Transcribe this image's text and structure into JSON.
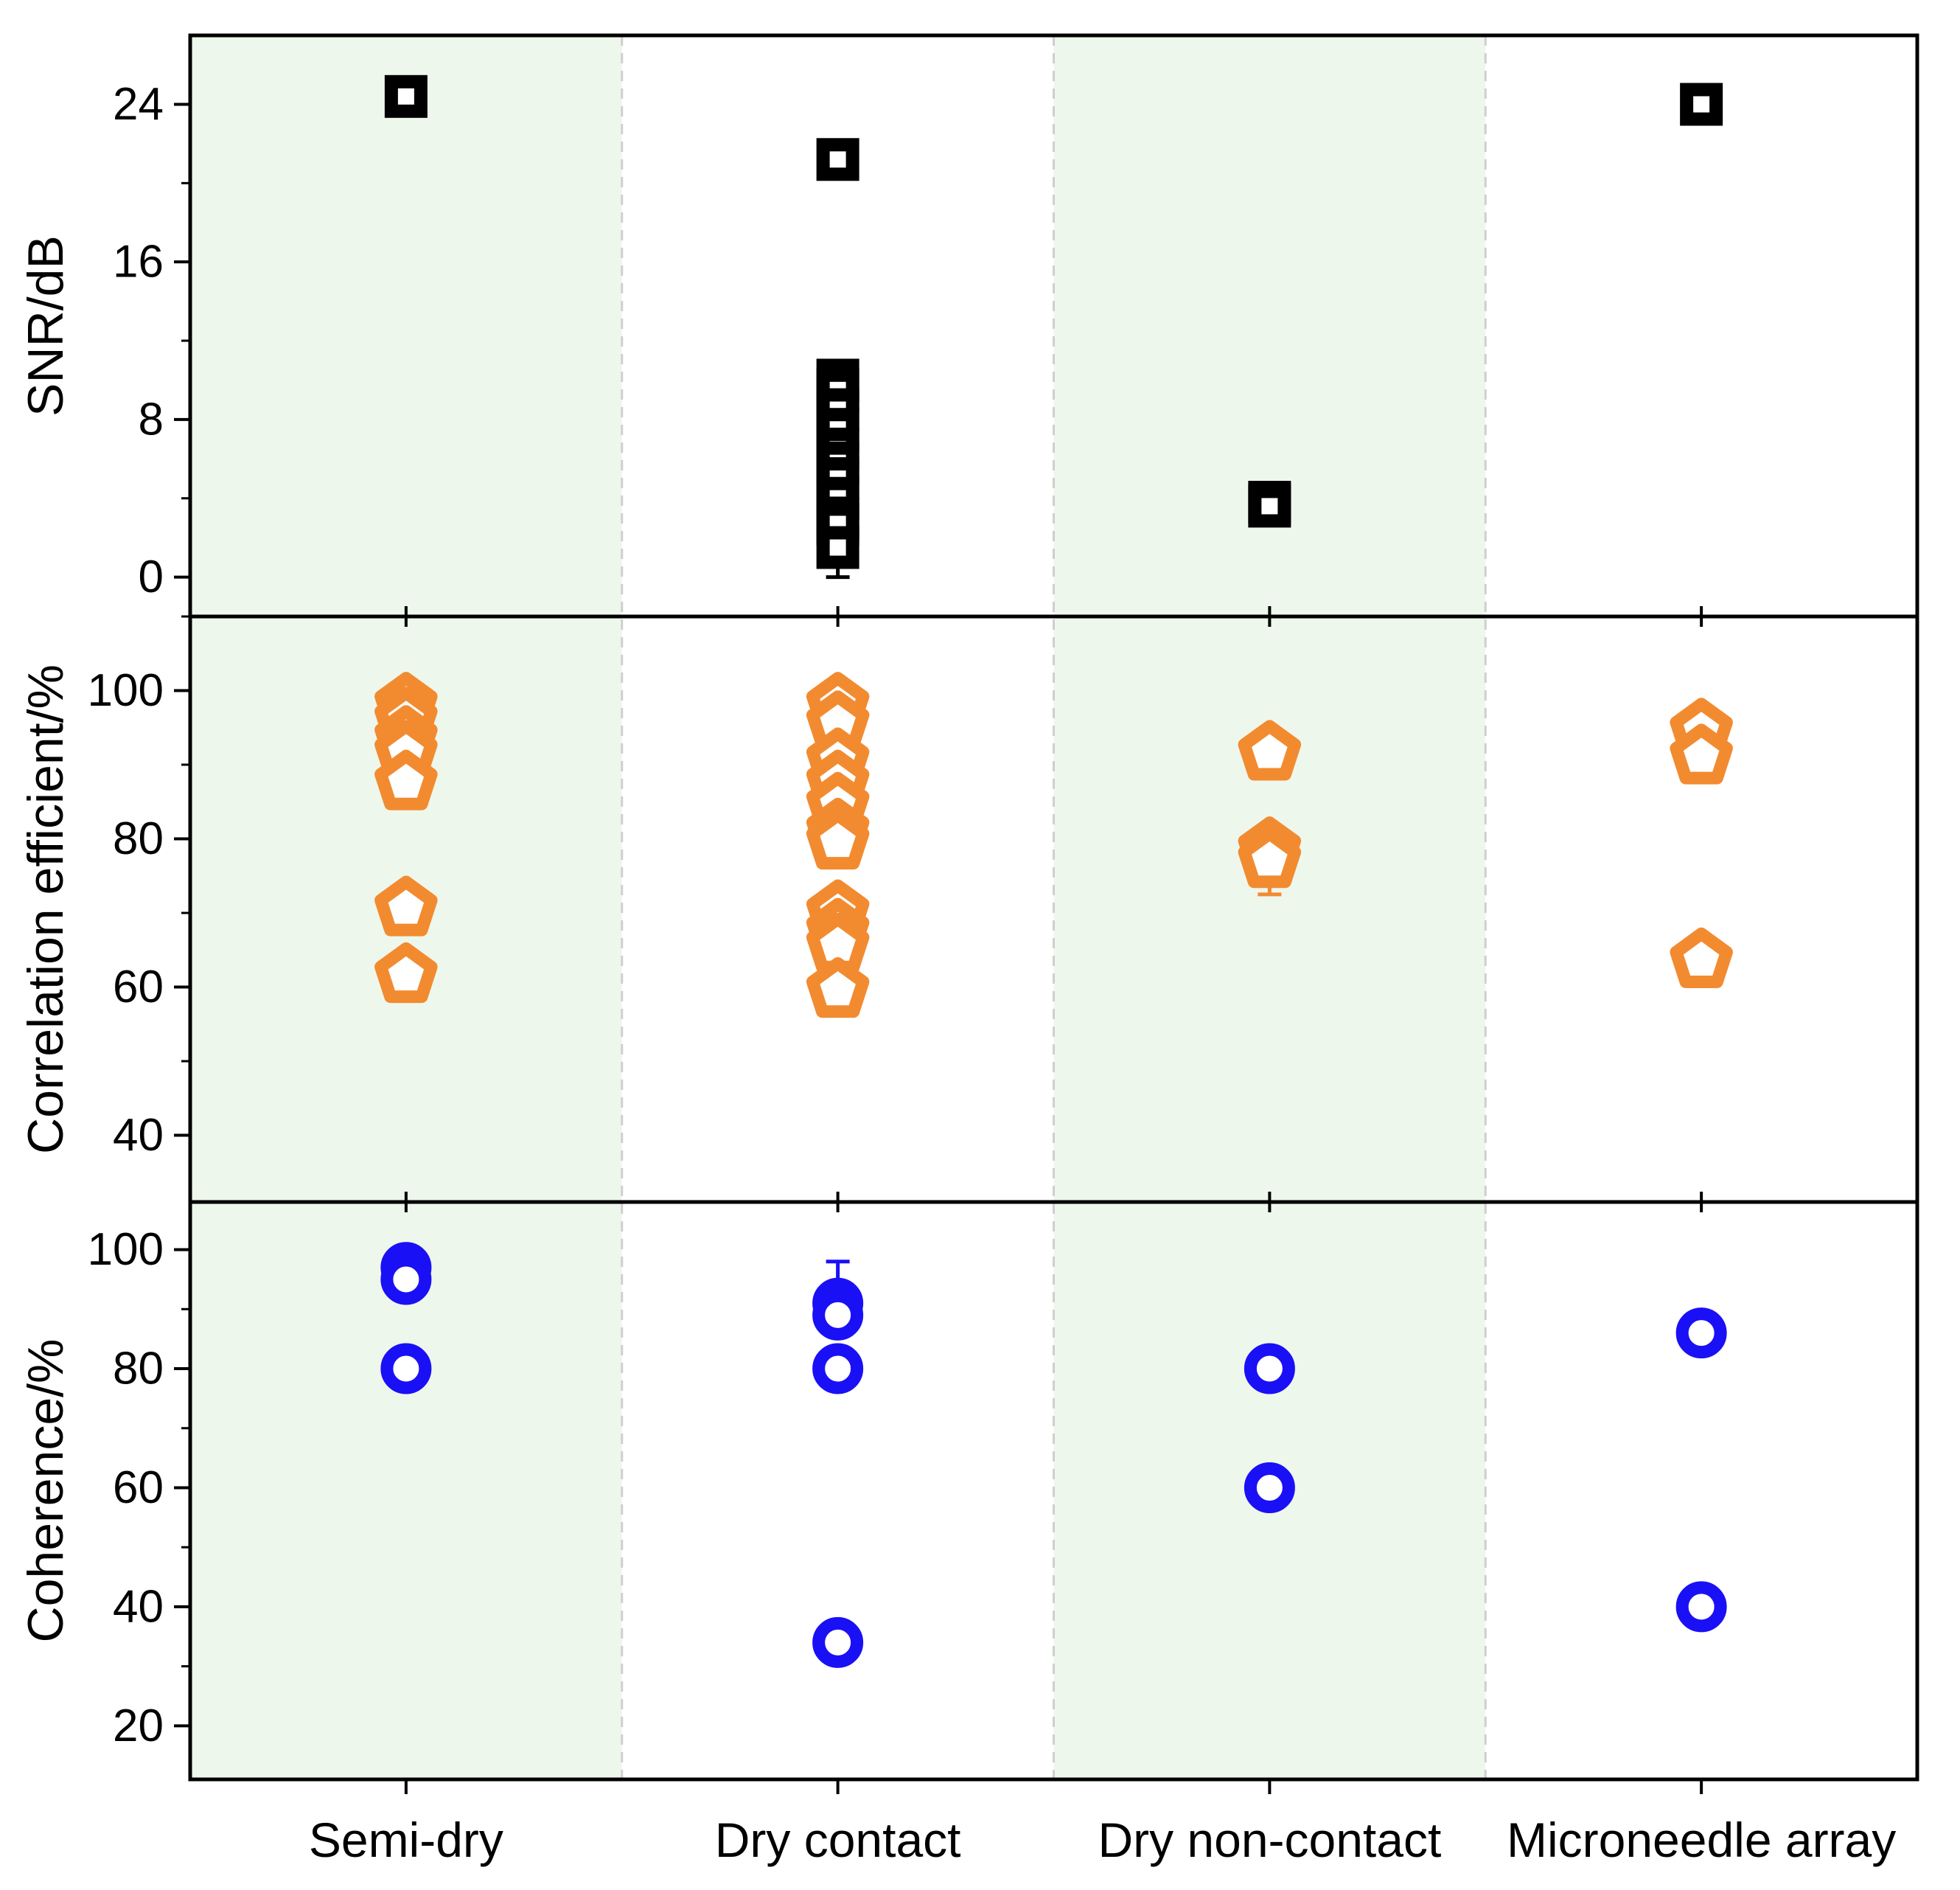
{
  "chart_data": {
    "type": "scatter",
    "layout": "three vertically stacked panels sharing a categorical x axis",
    "categories": [
      "Semi-dry",
      "Dry contact",
      "Dry non-contact",
      "Microneedle array"
    ],
    "shaded_categories": [
      "Semi-dry",
      "Dry non-contact"
    ],
    "colors": {
      "shade": "#eef7ec",
      "divider": "#cfcfcf",
      "snr_marker": "#000000",
      "corr_marker": "#f28b30",
      "coh_marker": "#1a10f5"
    },
    "panels": [
      {
        "id": "snr",
        "ylabel": "SNR/dB",
        "ylim": [
          -2,
          27.5
        ],
        "yticks": [
          0,
          8,
          16,
          24
        ],
        "marker": "square",
        "color": "#000000",
        "points": [
          {
            "category": "Semi-dry",
            "value": 24.4
          },
          {
            "category": "Dry contact",
            "value": 21.2
          },
          {
            "category": "Dry contact",
            "value": 10.0
          },
          {
            "category": "Dry contact",
            "value": 9.5
          },
          {
            "category": "Dry contact",
            "value": 8.5
          },
          {
            "category": "Dry contact",
            "value": 7.5
          },
          {
            "category": "Dry contact",
            "value": 6.5
          },
          {
            "category": "Dry contact",
            "value": 5.8
          },
          {
            "category": "Dry contact",
            "value": 5.0
          },
          {
            "category": "Dry contact",
            "value": 4.0
          },
          {
            "category": "Dry contact",
            "value": 3.0
          },
          {
            "category": "Dry contact",
            "value": 2.7
          },
          {
            "category": "Dry contact",
            "value": 1.5
          },
          {
            "category": "Dry non-contact",
            "value": 3.8
          },
          {
            "category": "Dry non-contact",
            "value": 3.6
          },
          {
            "category": "Microneedle array",
            "value": 24.0
          }
        ],
        "error_bars": [
          {
            "category": "Dry contact",
            "low": 0.0,
            "high": 1.5
          }
        ]
      },
      {
        "id": "corr",
        "ylabel": "Correlation efficient/%",
        "ylim": [
          31,
          110
        ],
        "yticks": [
          40,
          60,
          80,
          100
        ],
        "marker": "pentagon",
        "color": "#f28b30",
        "points": [
          {
            "category": "Semi-dry",
            "value": 98.5
          },
          {
            "category": "Semi-dry",
            "value": 96.5
          },
          {
            "category": "Semi-dry",
            "value": 94.0
          },
          {
            "category": "Semi-dry",
            "value": 92.0
          },
          {
            "category": "Semi-dry",
            "value": 88.0
          },
          {
            "category": "Semi-dry",
            "value": 71.0
          },
          {
            "category": "Semi-dry",
            "value": 62.0
          },
          {
            "category": "Dry contact",
            "value": 98.5
          },
          {
            "category": "Dry contact",
            "value": 96.0
          },
          {
            "category": "Dry contact",
            "value": 91.0
          },
          {
            "category": "Dry contact",
            "value": 88.0
          },
          {
            "category": "Dry contact",
            "value": 85.0
          },
          {
            "category": "Dry contact",
            "value": 81.5
          },
          {
            "category": "Dry contact",
            "value": 80.0
          },
          {
            "category": "Dry contact",
            "value": 70.5
          },
          {
            "category": "Dry contact",
            "value": 68.0
          },
          {
            "category": "Dry contact",
            "value": 66.0
          },
          {
            "category": "Dry contact",
            "value": 60.0
          },
          {
            "category": "Dry non-contact",
            "value": 92.0
          },
          {
            "category": "Dry non-contact",
            "value": 79.0
          },
          {
            "category": "Dry non-contact",
            "value": 77.5
          },
          {
            "category": "Microneedle array",
            "value": 95.0
          },
          {
            "category": "Microneedle array",
            "value": 91.5
          },
          {
            "category": "Microneedle array",
            "value": 64.0
          }
        ],
        "error_bars": [
          {
            "category": "Dry non-contact",
            "low": 72.5,
            "high": 77.5
          }
        ]
      },
      {
        "id": "coh",
        "ylabel": "Coherence/%",
        "ylim": [
          11,
          108
        ],
        "yticks": [
          20,
          40,
          60,
          80,
          100
        ],
        "marker": "circle",
        "color": "#1a10f5",
        "points": [
          {
            "category": "Semi-dry",
            "value": 97.0
          },
          {
            "category": "Semi-dry",
            "value": 95.0
          },
          {
            "category": "Semi-dry",
            "value": 80.0
          },
          {
            "category": "Dry contact",
            "value": 91.0
          },
          {
            "category": "Dry contact",
            "value": 89.0
          },
          {
            "category": "Dry contact",
            "value": 80.0
          },
          {
            "category": "Dry contact",
            "value": 34.0
          },
          {
            "category": "Dry non-contact",
            "value": 80.0
          },
          {
            "category": "Dry non-contact",
            "value": 60.0
          },
          {
            "category": "Microneedle array",
            "value": 86.0
          },
          {
            "category": "Microneedle array",
            "value": 40.0
          }
        ],
        "error_bars": [
          {
            "category": "Dry contact",
            "low": 89.0,
            "high": 98.0
          },
          {
            "category": "Dry contact",
            "low": 34.0,
            "high": 37.0
          }
        ]
      }
    ]
  }
}
